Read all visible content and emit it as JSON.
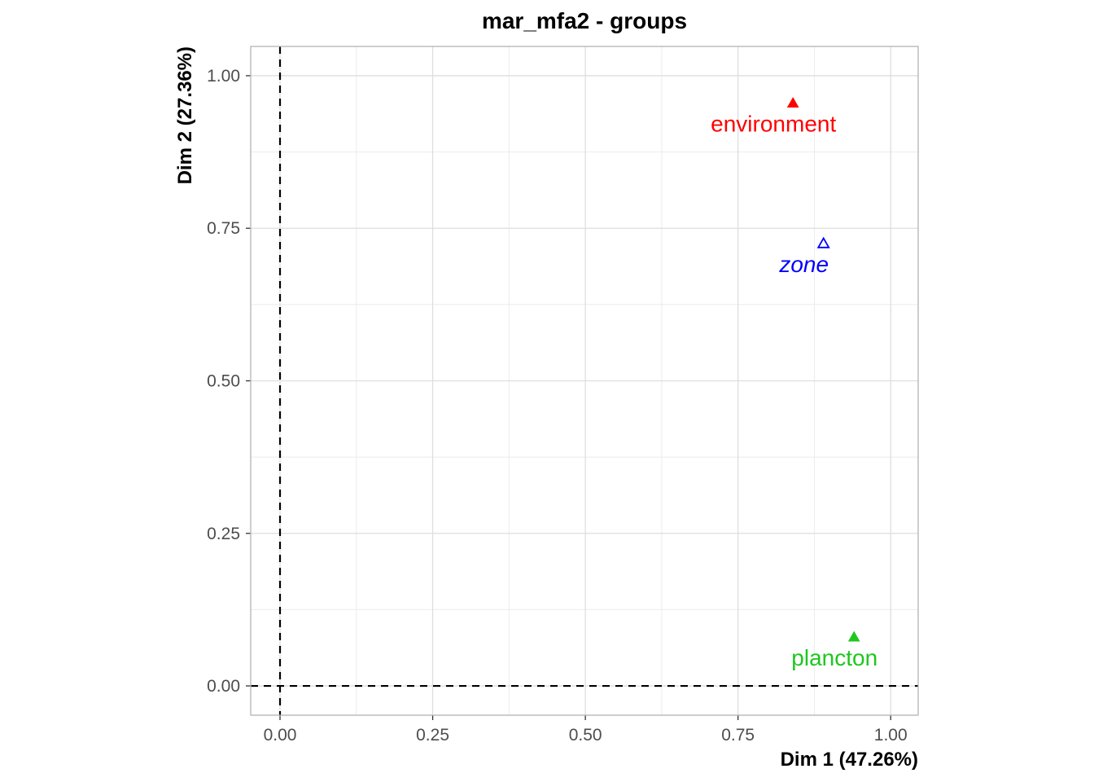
{
  "chart_data": {
    "type": "scatter",
    "title": "mar_mfa2 - groups",
    "xlabel": "Dim 1 (47.26%)",
    "ylabel": "Dim 2 (27.36%)",
    "xlim": [
      -0.048,
      1.045
    ],
    "ylim": [
      -0.048,
      1.048
    ],
    "xticks": [
      0.0,
      0.25,
      0.5,
      0.75,
      1.0
    ],
    "xtick_labels": [
      "0.00",
      "0.25",
      "0.50",
      "0.75",
      "1.00"
    ],
    "yticks": [
      0.0,
      0.25,
      0.5,
      0.75,
      1.0
    ],
    "ytick_labels": [
      "0.00",
      "0.25",
      "0.50",
      "0.75",
      "1.00"
    ],
    "grid": true,
    "reference_lines": {
      "x": 0,
      "y": 0,
      "style": "dashed"
    },
    "points": [
      {
        "label": "environment",
        "x": 0.84,
        "y": 0.955,
        "color": "#ff0000",
        "marker": "filled-triangle",
        "italic": false
      },
      {
        "label": "zone",
        "x": 0.89,
        "y": 0.725,
        "color": "#0000ff",
        "marker": "open-triangle",
        "italic": true
      },
      {
        "label": "plancton",
        "x": 0.94,
        "y": 0.08,
        "color": "#1ec71e",
        "marker": "filled-triangle",
        "italic": false
      }
    ]
  }
}
